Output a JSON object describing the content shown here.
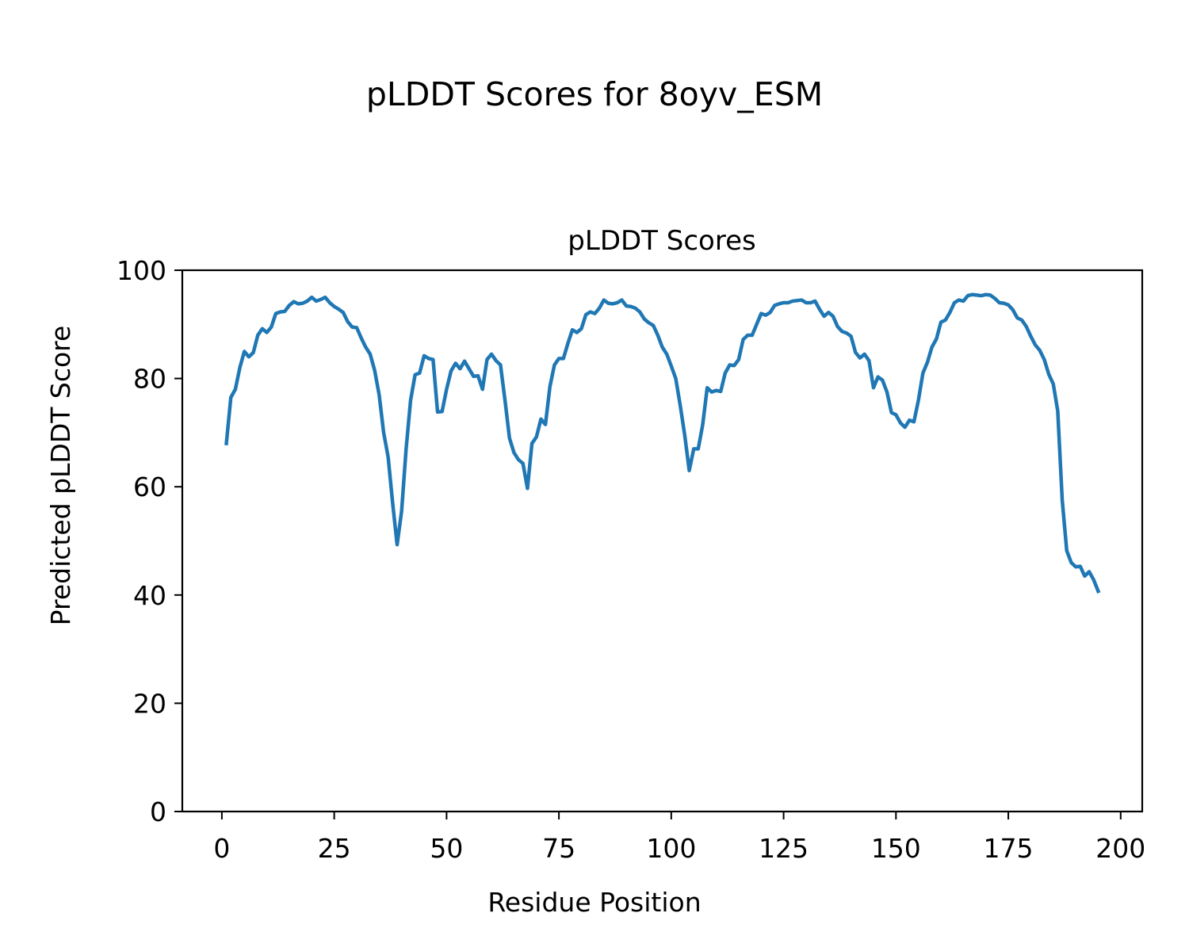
{
  "figure_title": "pLDDT Scores for 8oyv_ESM",
  "chart_data": {
    "type": "line",
    "title": "pLDDT Scores",
    "xlabel": "Residue Position",
    "ylabel": "Predicted pLDDT Score",
    "xlim": [
      -8.8,
      204.8
    ],
    "ylim": [
      0,
      100
    ],
    "xticks": [
      0,
      25,
      50,
      75,
      100,
      125,
      150,
      175,
      200
    ],
    "yticks": [
      0,
      20,
      40,
      60,
      80,
      100
    ],
    "grid": false,
    "legend": "none",
    "series_color": "#1f77b4",
    "x": [
      1,
      2,
      3,
      4,
      5,
      6,
      7,
      8,
      9,
      10,
      11,
      12,
      13,
      14,
      15,
      16,
      17,
      18,
      19,
      20,
      21,
      22,
      23,
      24,
      25,
      26,
      27,
      28,
      29,
      30,
      31,
      32,
      33,
      34,
      35,
      36,
      37,
      38,
      39,
      40,
      41,
      42,
      43,
      44,
      45,
      46,
      47,
      48,
      49,
      50,
      51,
      52,
      53,
      54,
      55,
      56,
      57,
      58,
      59,
      60,
      61,
      62,
      63,
      64,
      65,
      66,
      67,
      68,
      69,
      70,
      71,
      72,
      73,
      74,
      75,
      76,
      77,
      78,
      79,
      80,
      81,
      82,
      83,
      84,
      85,
      86,
      87,
      88,
      89,
      90,
      91,
      92,
      93,
      94,
      95,
      96,
      97,
      98,
      99,
      100,
      101,
      102,
      103,
      104,
      105,
      106,
      107,
      108,
      109,
      110,
      111,
      112,
      113,
      114,
      115,
      116,
      117,
      118,
      119,
      120,
      121,
      122,
      123,
      124,
      125,
      126,
      127,
      128,
      129,
      130,
      131,
      132,
      133,
      134,
      135,
      136,
      137,
      138,
      139,
      140,
      141,
      142,
      143,
      144,
      145,
      146,
      147,
      148,
      149,
      150,
      151,
      152,
      153,
      154,
      155,
      156,
      157,
      158,
      159,
      160,
      161,
      162,
      163,
      164,
      165,
      166,
      167,
      168,
      169,
      170,
      171,
      172,
      173,
      174,
      175,
      176,
      177,
      178,
      179,
      180,
      181,
      182,
      183,
      184,
      185,
      186,
      187,
      188,
      189,
      190,
      191,
      192,
      193,
      194,
      195
    ],
    "y": [
      68,
      76.5,
      78,
      82,
      85,
      84,
      84.8,
      88,
      89.2,
      88.5,
      89.5,
      92,
      92.3,
      92.4,
      93.5,
      94.2,
      93.8,
      93.9,
      94.3,
      95,
      94.3,
      94.6,
      95,
      94,
      93.3,
      92.8,
      92.2,
      90.5,
      89.5,
      89.4,
      87.5,
      85.8,
      84.5,
      81.5,
      77,
      70,
      65.5,
      57,
      49.3,
      55.5,
      67,
      76,
      80.7,
      81,
      84.2,
      83.7,
      83.5,
      73.8,
      73.9,
      78,
      81.4,
      82.8,
      81.8,
      83.2,
      81.8,
      80.4,
      80.5,
      78,
      83.5,
      84.5,
      83.3,
      82.5,
      76,
      69,
      66.3,
      65,
      64.3,
      59.7,
      68,
      69.2,
      72.5,
      71.5,
      78.5,
      82.5,
      83.7,
      83.7,
      86.5,
      89,
      88.5,
      89.2,
      91.8,
      92.3,
      92,
      93,
      94.5,
      93.9,
      93.8,
      94,
      94.5,
      93.4,
      93.3,
      93,
      92.3,
      91,
      90.3,
      89.8,
      88,
      85.8,
      84.5,
      82.3,
      80,
      75,
      69.5,
      63,
      67,
      67,
      71.5,
      78.3,
      77.5,
      77.8,
      77.6,
      81,
      82.5,
      82.4,
      83.5,
      87.2,
      88,
      88,
      90,
      92,
      91.7,
      92.2,
      93.5,
      93.8,
      94,
      94,
      94.3,
      94.4,
      94.5,
      94,
      94,
      94.3,
      92.8,
      91.5,
      92.2,
      91.5,
      89.6,
      88.7,
      88.4,
      87.8,
      84.8,
      83.8,
      84.5,
      83.3,
      78.3,
      80.3,
      79.7,
      77.5,
      73.7,
      73.3,
      71.8,
      71,
      72.3,
      72,
      76,
      81,
      83,
      85.8,
      87.3,
      90.4,
      90.8,
      92.2,
      94,
      94.5,
      94.3,
      95.3,
      95.5,
      95.4,
      95.3,
      95.5,
      95.4,
      94.8,
      94,
      93.9,
      93.6,
      92.7,
      91.2,
      90.8,
      89.6,
      87.8,
      86.2,
      85.2,
      83.5,
      80.8,
      79,
      74,
      57.5,
      48.2,
      46,
      45.2,
      45.3,
      43.5,
      44.3,
      42.8,
      40.7
    ]
  }
}
